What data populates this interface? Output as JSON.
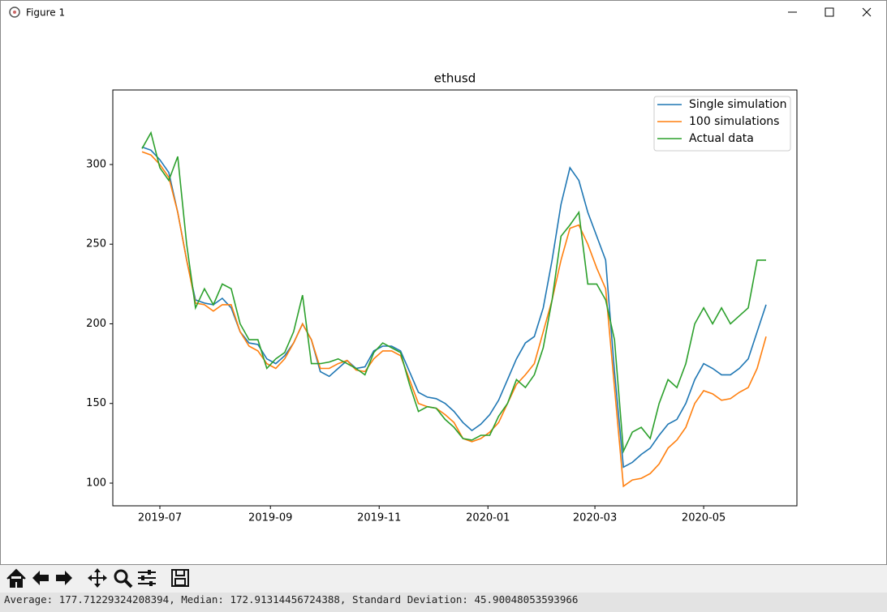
{
  "window": {
    "title": "Figure 1"
  },
  "chart_data": {
    "type": "line",
    "title": "ethusd",
    "x": [
      -10,
      -5,
      0,
      5,
      10,
      15,
      20,
      25,
      30,
      35,
      40,
      45,
      50,
      55,
      60,
      65,
      70,
      75,
      80,
      85,
      90,
      95,
      100,
      105,
      110,
      115,
      120,
      125,
      130,
      135,
      140,
      145,
      150,
      155,
      160,
      165,
      170,
      175,
      180,
      185,
      190,
      195,
      200,
      205,
      210,
      215,
      220,
      225,
      230,
      235,
      240,
      245,
      250,
      255,
      260,
      265,
      270,
      275,
      280,
      285,
      290,
      295,
      300,
      305,
      310,
      315,
      320,
      325,
      330,
      335,
      340
    ],
    "series": [
      {
        "name": "Single simulation",
        "color": "#1f77b4",
        "values": [
          311,
          309,
          303,
          295,
          270,
          240,
          215,
          213,
          212,
          216,
          210,
          195,
          188,
          187,
          178,
          175,
          180,
          188,
          200,
          190,
          170,
          167,
          172,
          177,
          172,
          173,
          183,
          186,
          186,
          183,
          170,
          157,
          154,
          153,
          150,
          145,
          138,
          133,
          137,
          143,
          152,
          165,
          178,
          188,
          192,
          210,
          240,
          275,
          298,
          290,
          270,
          255,
          240,
          170,
          110,
          113,
          118,
          122,
          130,
          137,
          140,
          150,
          165,
          175,
          172,
          168,
          168,
          172,
          178,
          195,
          212
        ]
      },
      {
        "name": "100 simulations",
        "color": "#ff7f0e",
        "values": [
          308,
          306,
          300,
          292,
          270,
          240,
          213,
          212,
          208,
          212,
          212,
          195,
          186,
          183,
          175,
          172,
          178,
          188,
          200,
          190,
          172,
          172,
          175,
          177,
          171,
          170,
          178,
          183,
          183,
          180,
          165,
          150,
          148,
          147,
          143,
          138,
          128,
          126,
          128,
          132,
          138,
          150,
          162,
          168,
          175,
          195,
          215,
          240,
          260,
          262,
          250,
          235,
          222,
          160,
          98,
          102,
          103,
          106,
          112,
          122,
          127,
          135,
          150,
          158,
          156,
          152,
          153,
          157,
          160,
          172,
          192
        ]
      },
      {
        "name": "Actual data",
        "color": "#2ca02c",
        "values": [
          310,
          320,
          298,
          290,
          305,
          250,
          210,
          222,
          212,
          225,
          222,
          200,
          190,
          190,
          172,
          178,
          182,
          195,
          218,
          175,
          175,
          176,
          178,
          175,
          172,
          168,
          182,
          188,
          185,
          182,
          162,
          145,
          148,
          147,
          140,
          135,
          128,
          127,
          130,
          130,
          142,
          150,
          165,
          160,
          168,
          185,
          215,
          255,
          262,
          270,
          225,
          225,
          215,
          190,
          120,
          132,
          135,
          128,
          150,
          165,
          160,
          175,
          200,
          210,
          200,
          210,
          200,
          205,
          210,
          240,
          240
        ]
      }
    ],
    "xlim": [
      -26.4,
      357.3
    ],
    "xticks": [
      {
        "value": 0,
        "label": "2019-07"
      },
      {
        "value": 62,
        "label": "2019-09"
      },
      {
        "value": 123,
        "label": "2019-11"
      },
      {
        "value": 184,
        "label": "2020-01"
      },
      {
        "value": 244,
        "label": "2020-03"
      },
      {
        "value": 305,
        "label": "2020-05"
      }
    ],
    "ylim": [
      85.75,
      346.8
    ],
    "yticks": [
      100,
      150,
      200,
      250,
      300
    ],
    "legend": "upper right"
  },
  "status": "Average: 177.71229324208394, Median: 172.91314456724388, Standard Deviation: 45.90048053593966"
}
